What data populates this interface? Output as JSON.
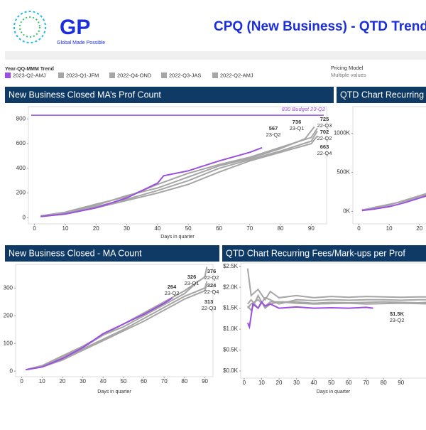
{
  "header": {
    "logo_text": "GP",
    "tagline": "Global Made Possible",
    "title": "CPQ (New Business) - QTD Trend"
  },
  "legend": {
    "title": "Year-QQ-MMM Trend"
  },
  "filter": {
    "title": "Pricing Model",
    "value": "Multiple values"
  },
  "chart_data": [
    {
      "type": "line",
      "title": "New Business Closed MA’s Prof Count",
      "xlabel": "Days in quarter",
      "xlim": [
        -2,
        95
      ],
      "ylim": [
        -50,
        900
      ],
      "xticks": [
        0,
        10,
        20,
        30,
        40,
        50,
        60,
        70,
        80,
        90
      ],
      "yticks": [
        0,
        200,
        400,
        600,
        800
      ],
      "budget": {
        "value": 830,
        "label": "830 Budget 23-Q2",
        "color": "#9b4fe0"
      },
      "series": [
        {
          "name": "2023-Q2-AMJ",
          "label": "23-Q2",
          "color": "#9b4fe0",
          "x": [
            2,
            10,
            20,
            30,
            40,
            42,
            50,
            60,
            70,
            74
          ],
          "values": [
            10,
            30,
            80,
            160,
            280,
            340,
            380,
            460,
            530,
            567
          ]
        },
        {
          "name": "2023-Q1-JFM",
          "label": "23-Q1",
          "color": "#a6a6a6",
          "x": [
            2,
            10,
            20,
            30,
            40,
            50,
            60,
            70,
            80,
            88,
            91
          ],
          "values": [
            15,
            40,
            100,
            180,
            240,
            330,
            420,
            480,
            560,
            640,
            736
          ]
        },
        {
          "name": "2022-Q4-OND",
          "label": "22-Q4",
          "color": "#a6a6a6",
          "x": [
            2,
            10,
            20,
            30,
            40,
            50,
            60,
            70,
            80,
            90,
            92
          ],
          "values": [
            10,
            30,
            80,
            140,
            200,
            270,
            370,
            460,
            530,
            600,
            663
          ]
        },
        {
          "name": "2022-Q3-JAS",
          "label": "22-Q3",
          "color": "#a6a6a6",
          "x": [
            2,
            10,
            20,
            30,
            40,
            50,
            60,
            70,
            80,
            90,
            92
          ],
          "values": [
            15,
            45,
            110,
            170,
            270,
            360,
            430,
            490,
            570,
            650,
            725
          ]
        },
        {
          "name": "2022-Q2-AMJ",
          "label": "22-Q2",
          "color": "#a6a6a6",
          "x": [
            2,
            10,
            20,
            30,
            40,
            50,
            60,
            70,
            80,
            90,
            92
          ],
          "values": [
            10,
            35,
            90,
            150,
            220,
            300,
            400,
            470,
            540,
            620,
            702
          ]
        }
      ]
    },
    {
      "type": "line",
      "title": "QTD Chart Recurring Fees",
      "xlim": [
        -2,
        25
      ],
      "ylim": [
        -160000,
        1340000
      ],
      "xticks": [
        0,
        10,
        20
      ],
      "yticks": [
        {
          "value": 0,
          "label": "0K"
        },
        {
          "value": 500000,
          "label": "500K"
        },
        {
          "value": 1000000,
          "label": "1000K"
        }
      ],
      "series": [
        {
          "color": "#9b4fe0",
          "x": [
            1,
            5,
            10,
            15,
            20,
            25
          ],
          "values": [
            10000,
            30000,
            60000,
            110000,
            170000,
            230000
          ]
        },
        {
          "color": "#a6a6a6",
          "x": [
            1,
            5,
            10,
            15,
            20,
            25
          ],
          "values": [
            20000,
            40000,
            80000,
            140000,
            200000,
            260000
          ]
        },
        {
          "color": "#a6a6a6",
          "x": [
            1,
            5,
            10,
            15,
            20,
            25
          ],
          "values": [
            15000,
            50000,
            90000,
            130000,
            190000,
            240000
          ]
        }
      ]
    },
    {
      "type": "line",
      "title": "New Business Closed - MA Count",
      "xlabel": "Days in quarter",
      "xlim": [
        -3,
        94
      ],
      "ylim": [
        -20,
        385
      ],
      "xticks": [
        0,
        10,
        20,
        30,
        40,
        50,
        60,
        70,
        80,
        90
      ],
      "yticks": [
        0,
        100,
        200,
        300
      ],
      "series": [
        {
          "label": "23-Q2",
          "color": "#9b4fe0",
          "x": [
            2,
            10,
            20,
            30,
            40,
            50,
            60,
            70,
            74
          ],
          "values": [
            5,
            15,
            45,
            85,
            135,
            170,
            205,
            245,
            264
          ]
        },
        {
          "label": "23-Q1",
          "color": "#a6a6a6",
          "x": [
            2,
            10,
            20,
            30,
            40,
            50,
            60,
            70,
            80,
            87
          ],
          "values": [
            5,
            20,
            55,
            90,
            130,
            160,
            200,
            240,
            280,
            326
          ]
        },
        {
          "label": "22-Q2",
          "color": "#a6a6a6",
          "x": [
            2,
            10,
            20,
            30,
            40,
            50,
            60,
            70,
            80,
            90,
            91
          ],
          "values": [
            5,
            18,
            50,
            85,
            130,
            170,
            210,
            250,
            290,
            340,
            376
          ]
        },
        {
          "label": "22-Q4",
          "color": "#a6a6a6",
          "x": [
            2,
            10,
            20,
            30,
            40,
            50,
            60,
            70,
            80,
            90,
            91
          ],
          "values": [
            5,
            15,
            45,
            80,
            115,
            150,
            190,
            230,
            270,
            300,
            324
          ]
        },
        {
          "label": "22-Q3",
          "color": "#a6a6a6",
          "x": [
            2,
            10,
            20,
            30,
            40,
            50,
            60,
            70,
            80,
            90,
            91
          ],
          "values": [
            5,
            15,
            40,
            75,
            110,
            145,
            180,
            220,
            260,
            290,
            313
          ]
        }
      ]
    },
    {
      "type": "line",
      "title": "QTD Chart Recurring Fees/Mark-ups per Prof",
      "xlabel": "Days in quarter",
      "xlim": [
        -2,
        106
      ],
      "ylim": [
        -170,
        2580
      ],
      "xticks": [
        0,
        10,
        20,
        30,
        40,
        50,
        60,
        70,
        80,
        90
      ],
      "yticks": [
        {
          "value": 0,
          "label": "$0.0K"
        },
        {
          "value": 500,
          "label": "$0.5K"
        },
        {
          "value": 1000,
          "label": "$1.0K"
        },
        {
          "value": 1500,
          "label": "$1.5K"
        },
        {
          "value": 2000,
          "label": "$2.0K"
        },
        {
          "value": 2500,
          "label": "$2.5K"
        }
      ],
      "series": [
        {
          "label": "23-Q2",
          "color": "#9b4fe0",
          "x": [
            2,
            3,
            5,
            8,
            10,
            12,
            15,
            20,
            30,
            40,
            50,
            60,
            70,
            74
          ],
          "values": [
            1150,
            1050,
            1600,
            1500,
            1650,
            1550,
            1600,
            1500,
            1530,
            1500,
            1510,
            1500,
            1520,
            1500
          ],
          "value_labels": [
            null,
            null,
            null,
            null,
            null,
            null,
            null,
            null,
            null,
            null,
            null,
            null,
            null,
            "$1.5K"
          ]
        },
        {
          "color": "#a6a6a6",
          "x": [
            2,
            4,
            8,
            12,
            15,
            20,
            30,
            40,
            50,
            60,
            70,
            80,
            90,
            100,
            106
          ],
          "values": [
            2450,
            1800,
            1950,
            1700,
            1900,
            1750,
            1800,
            1750,
            1780,
            1760,
            1780,
            1770,
            1760,
            1770,
            1770
          ]
        },
        {
          "color": "#a6a6a6",
          "x": [
            2,
            4,
            8,
            12,
            15,
            20,
            30,
            40,
            50,
            60,
            70,
            80,
            90,
            100,
            106
          ],
          "values": [
            1500,
            1600,
            1700,
            1550,
            1650,
            1650,
            1650,
            1620,
            1640,
            1630,
            1640,
            1650,
            1640,
            1630,
            1640
          ]
        },
        {
          "color": "#a6a6a6",
          "x": [
            2,
            4,
            8,
            12,
            15,
            20,
            30,
            40,
            50,
            60,
            70,
            80,
            90,
            100,
            106
          ],
          "values": [
            1550,
            1450,
            1800,
            1500,
            1600,
            1650,
            1620,
            1600,
            1610,
            1620,
            1600,
            1610,
            1620,
            1610,
            1600
          ]
        },
        {
          "color": "#a6a6a6",
          "x": [
            2,
            4,
            8,
            12,
            15,
            20,
            30,
            40,
            50,
            60,
            70,
            80,
            90,
            100,
            106
          ],
          "values": [
            1600,
            1700,
            1500,
            1750,
            1700,
            1600,
            1700,
            1680,
            1700,
            1690,
            1700,
            1700,
            1690,
            1700,
            1700
          ]
        }
      ]
    }
  ]
}
